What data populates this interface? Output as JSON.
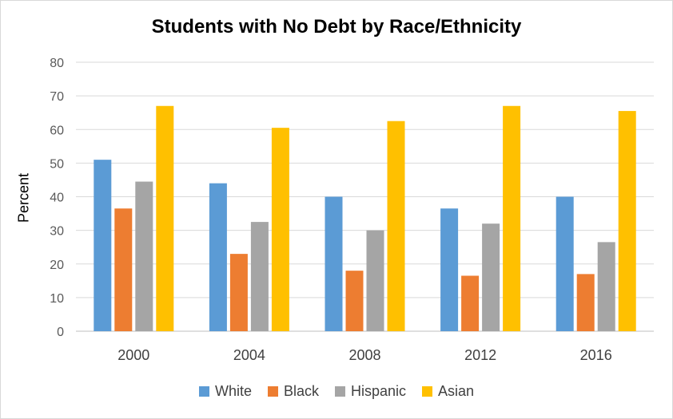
{
  "chart_data": {
    "type": "bar",
    "title": "Students with No Debt by Race/Ethnicity",
    "xlabel": "",
    "ylabel": "Percent",
    "ylim": [
      0,
      80
    ],
    "yticks": [
      0,
      10,
      20,
      30,
      40,
      50,
      60,
      70,
      80
    ],
    "grid": true,
    "legend_position": "bottom",
    "categories": [
      "2000",
      "2004",
      "2008",
      "2012",
      "2016"
    ],
    "series": [
      {
        "name": "White",
        "color": "#5b9bd5",
        "values": [
          51,
          44,
          40,
          36.5,
          40
        ]
      },
      {
        "name": "Black",
        "color": "#ed7d31",
        "values": [
          36.5,
          23,
          18,
          16.5,
          17
        ]
      },
      {
        "name": "Hispanic",
        "color": "#a5a5a5",
        "values": [
          44.5,
          32.5,
          30,
          32,
          26.5
        ]
      },
      {
        "name": "Asian",
        "color": "#ffc000",
        "values": [
          67,
          60.5,
          62.5,
          67,
          65.5
        ]
      }
    ]
  }
}
